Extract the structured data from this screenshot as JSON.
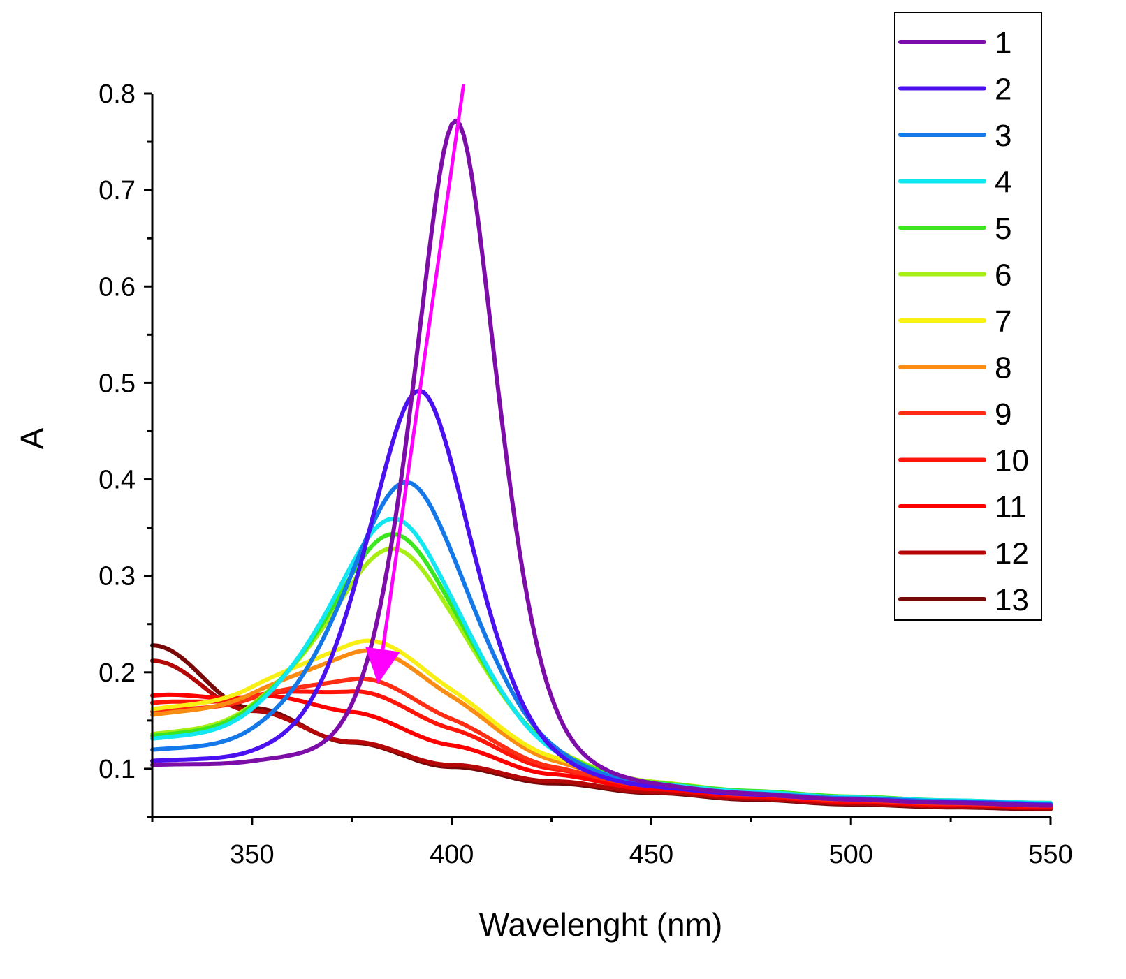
{
  "chart_data": {
    "type": "line",
    "title": "",
    "xlabel": "Wavelenght (nm)",
    "ylabel": "A",
    "xlim": [
      325,
      550
    ],
    "ylim": [
      0.05,
      0.8
    ],
    "x_ticks": [
      350,
      400,
      450,
      500,
      550
    ],
    "y_ticks": [
      0.1,
      0.2,
      0.3,
      0.4,
      0.5,
      0.6,
      0.7,
      0.8
    ],
    "legend_position": "top-right",
    "annotation": {
      "type": "arrow",
      "color": "#ff00ff",
      "from": [
        403,
        0.81
      ],
      "to": [
        382,
        0.195
      ]
    },
    "series": [
      {
        "name": "1",
        "color": "#7d0da8",
        "peak_x": 401,
        "peak_y": 0.772,
        "width": 11.5,
        "base": [
          0.097,
          0.093,
          0.087,
          0.08,
          0.073,
          0.069,
          0.067,
          0.064,
          0.062,
          0.06
        ]
      },
      {
        "name": "2",
        "color": "#4b10f0",
        "peak_x": 392,
        "peak_y": 0.492,
        "width": 14.5,
        "base": [
          0.1,
          0.096,
          0.09,
          0.083,
          0.076,
          0.071,
          0.068,
          0.065,
          0.063,
          0.061
        ]
      },
      {
        "name": "3",
        "color": "#1478e8",
        "peak_x": 389,
        "peak_y": 0.397,
        "width": 17.5,
        "base": [
          0.11,
          0.105,
          0.097,
          0.088,
          0.079,
          0.073,
          0.069,
          0.066,
          0.064,
          0.062
        ]
      },
      {
        "name": "4",
        "color": "#12e6f0",
        "peak_x": 386,
        "peak_y": 0.359,
        "width": 19.0,
        "base": [
          0.12,
          0.113,
          0.103,
          0.092,
          0.081,
          0.075,
          0.071,
          0.067,
          0.065,
          0.063
        ]
      },
      {
        "name": "5",
        "color": "#3ce61e",
        "peak_x": 386,
        "peak_y": 0.343,
        "width": 19.5,
        "base": [
          0.123,
          0.116,
          0.105,
          0.094,
          0.083,
          0.076,
          0.072,
          0.068,
          0.065,
          0.063
        ]
      },
      {
        "name": "6",
        "color": "#a6ee14",
        "peak_x": 386,
        "peak_y": 0.328,
        "width": 20.0,
        "base": [
          0.125,
          0.118,
          0.107,
          0.095,
          0.084,
          0.077,
          0.072,
          0.068,
          0.065,
          0.063
        ]
      },
      {
        "name": "7",
        "color": "#f8f014",
        "peak_x": 381,
        "peak_y": 0.232,
        "width": 24.0,
        "base": [
          0.15,
          0.14,
          0.124,
          0.107,
          0.09,
          0.08,
          0.073,
          0.068,
          0.065,
          0.062
        ]
      },
      {
        "name": "8",
        "color": "#fa8c14",
        "peak_x": 381,
        "peak_y": 0.222,
        "width": 24.0,
        "base": [
          0.145,
          0.136,
          0.121,
          0.105,
          0.088,
          0.079,
          0.072,
          0.067,
          0.064,
          0.062
        ]
      },
      {
        "name": "9",
        "color": "#ff2d14",
        "peak_x": 379,
        "peak_y": 0.193,
        "width": 25.0,
        "base": [
          0.15,
          0.14,
          0.124,
          0.106,
          0.088,
          0.078,
          0.071,
          0.066,
          0.063,
          0.061
        ]
      },
      {
        "name": "10",
        "color": "#ff140a",
        "peak_x": 377,
        "peak_y": 0.18,
        "width": 26.0,
        "base": [
          0.16,
          0.148,
          0.13,
          0.11,
          0.09,
          0.079,
          0.071,
          0.066,
          0.063,
          0.061
        ]
      },
      {
        "name": "11",
        "color": "#ff0000",
        "peak_x": 367,
        "peak_y": 0.165,
        "width": 30.0,
        "base": [
          0.165,
          0.15,
          0.13,
          0.109,
          0.089,
          0.077,
          0.07,
          0.065,
          0.062,
          0.06
        ]
      },
      {
        "name": "12",
        "color": "#b40808",
        "peak_x": 325,
        "peak_y": 0.212,
        "width": 0,
        "base": [
          0.212,
          0.16,
          0.128,
          0.104,
          0.087,
          0.076,
          0.069,
          0.064,
          0.061,
          0.059
        ]
      },
      {
        "name": "13",
        "color": "#780808",
        "peak_x": 325,
        "peak_y": 0.228,
        "width": 0,
        "base": [
          0.228,
          0.163,
          0.127,
          0.102,
          0.085,
          0.075,
          0.068,
          0.063,
          0.06,
          0.058
        ]
      }
    ],
    "base_x": [
      325,
      350,
      375,
      400,
      425,
      450,
      475,
      500,
      525,
      550
    ]
  }
}
